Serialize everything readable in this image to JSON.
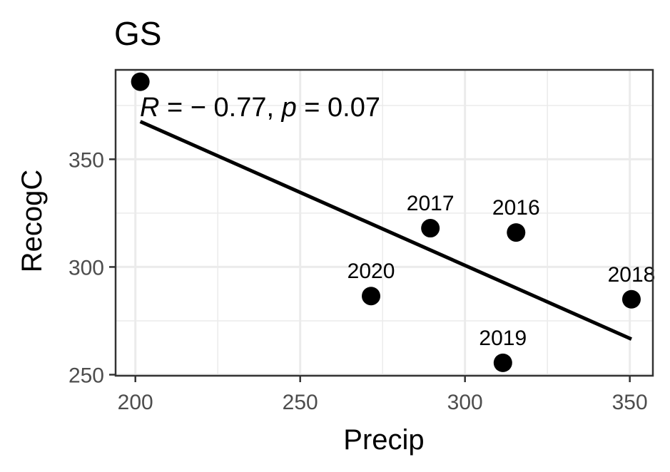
{
  "chart_data": {
    "type": "scatter",
    "title": "GS",
    "xlabel": "Precip",
    "ylabel": "RecogC",
    "xlim": [
      194,
      357
    ],
    "ylim": [
      249.5,
      391.5
    ],
    "xticks": [
      200,
      250,
      300,
      350
    ],
    "yticks": [
      250,
      300,
      350
    ],
    "x_minor": [
      225,
      275,
      325
    ],
    "y_minor": [
      275,
      325,
      375
    ],
    "grid": true,
    "points": [
      {
        "x": 201.5,
        "y": 386,
        "label": ""
      },
      {
        "x": 289.5,
        "y": 318,
        "label": "2017"
      },
      {
        "x": 315.5,
        "y": 316,
        "label": "2016"
      },
      {
        "x": 271.5,
        "y": 286.5,
        "label": "2020"
      },
      {
        "x": 350.5,
        "y": 285,
        "label": "2018"
      },
      {
        "x": 311.5,
        "y": 255.5,
        "label": "2019"
      }
    ],
    "fit_line": {
      "x": [
        201.5,
        350.5
      ],
      "y": [
        367.5,
        266.5
      ]
    },
    "annotation": {
      "R_symbol": "R",
      "R_value": " = − 0.77, ",
      "p_symbol": "p",
      "p_value": " = 0.07"
    },
    "colors": {
      "points": "#000000",
      "line": "#000000",
      "grid": "#ebebeb",
      "panel_border": "#333333"
    }
  }
}
